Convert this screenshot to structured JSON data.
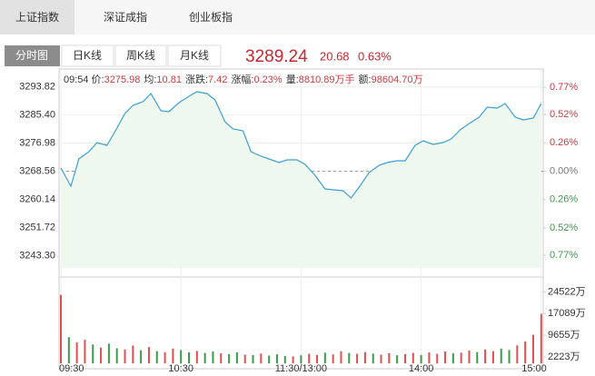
{
  "tabs": [
    "上证指数",
    "深证成指",
    "创业板指"
  ],
  "chart_tabs": [
    "分时图",
    "日K线",
    "周K线",
    "月K线"
  ],
  "quote": {
    "price": "3289.24",
    "change": "20.68",
    "change_pct": "0.63%"
  },
  "info": {
    "time": "09:54",
    "items": [
      {
        "label": "价:",
        "value": "3275.98"
      },
      {
        "label": "均:",
        "value": "10.81"
      },
      {
        "label": "涨跌:",
        "value": "7.42"
      },
      {
        "label": "涨幅:",
        "value": "0.23%"
      },
      {
        "label": "量:",
        "value": "8810.89万手"
      },
      {
        "label": "额:",
        "value": "98604.70万"
      }
    ]
  },
  "chart_data": [
    {
      "type": "area",
      "color": "#3d9fd6",
      "fill": "#eef8ef",
      "x": [
        0,
        5,
        9,
        14,
        18,
        23,
        27,
        32,
        36,
        41,
        45,
        50,
        54,
        59,
        64,
        68,
        73,
        77,
        82,
        86,
        91,
        95,
        100,
        104,
        109,
        113,
        118,
        122,
        127,
        132,
        136,
        141,
        145,
        150,
        154,
        159,
        163,
        168,
        172,
        177,
        181,
        186,
        191,
        195,
        200,
        204,
        209,
        213,
        218,
        222,
        227,
        231,
        236,
        240
      ],
      "values": [
        3269.54,
        3264.1,
        3272.26,
        3274.44,
        3277.16,
        3276.34,
        3280.43,
        3285.87,
        3288.32,
        3289.4,
        3291.85,
        3286.68,
        3286.41,
        3289.13,
        3291.04,
        3292.4,
        3291.85,
        3289.95,
        3283.42,
        3281.24,
        3280.7,
        3274.44,
        3273.08,
        3272.26,
        3271.17,
        3271.99,
        3271.99,
        3270.63,
        3267.36,
        3263.28,
        3263.01,
        3262.74,
        3260.56,
        3264.64,
        3268.18,
        3270.36,
        3271.17,
        3271.72,
        3271.72,
        3276.34,
        3277.7,
        3276.62,
        3277.16,
        3278.25,
        3281.24,
        3282.87,
        3284.78,
        3287.77,
        3287.5,
        3288.86,
        3284.78,
        3283.96,
        3284.51,
        3288.86
      ],
      "prev_close": 3268.56,
      "xlim": [
        0,
        241
      ],
      "xticks": [
        {
          "value": 0,
          "label": "09:30"
        },
        {
          "value": 60,
          "label": "10:30"
        },
        {
          "value": 120,
          "label": "11:30/13:00"
        },
        {
          "value": 180,
          "label": "14:00"
        },
        {
          "value": 240,
          "label": "15:00"
        }
      ],
      "ylim": [
        3239.6,
        3299.2
      ],
      "yticks": [
        3293.82,
        {
          "value": 3285.4,
          "label": "3285.40"
        },
        3276.98,
        3268.56,
        3260.14,
        3251.72,
        {
          "value": 3243.3,
          "label": "3243.30"
        }
      ],
      "y2lim": [
        -0.886,
        0.937
      ],
      "y2ticks": [
        {
          "value": 0.77,
          "label": "0.77%"
        },
        {
          "value": 0.52,
          "label": "0.52%"
        },
        {
          "value": 0.26,
          "label": "0.26%"
        },
        {
          "value": 0,
          "label": "0.00%"
        },
        {
          "value": -0.26,
          "label": "0.26%"
        },
        {
          "value": -0.52,
          "label": "0.52%"
        },
        {
          "value": -0.77,
          "label": "0.77%"
        }
      ],
      "grid": true
    },
    {
      "type": "bar",
      "x": [
        0,
        4,
        8,
        12,
        16,
        20,
        24,
        28,
        32,
        36,
        40,
        44,
        48,
        52,
        56,
        60,
        64,
        68,
        72,
        76,
        80,
        84,
        88,
        92,
        96,
        100,
        104,
        108,
        112,
        116,
        120,
        124,
        128,
        132,
        136,
        140,
        144,
        148,
        152,
        156,
        160,
        164,
        168,
        172,
        176,
        180,
        184,
        188,
        192,
        196,
        200,
        204,
        208,
        212,
        216,
        220,
        224,
        228,
        232,
        236,
        240
      ],
      "values": [
        23500,
        9000,
        7200,
        8100,
        6500,
        5400,
        6800,
        5200,
        4800,
        6100,
        4500,
        5600,
        4200,
        3900,
        5100,
        4600,
        3800,
        4300,
        3600,
        4100,
        3500,
        3200,
        3800,
        3000,
        2900,
        3400,
        2700,
        3100,
        2600,
        2400,
        2800,
        3300,
        2900,
        3700,
        3100,
        4200,
        3600,
        3300,
        3900,
        3400,
        3000,
        3500,
        2800,
        3200,
        3600,
        2900,
        3800,
        3300,
        4100,
        3500,
        3700,
        4400,
        3900,
        4800,
        4200,
        5100,
        4600,
        6200,
        7500,
        9800,
        17000
      ],
      "colors": [
        "#e0504f",
        "#3c9a4c",
        "#e0504f",
        "#e0504f",
        "#3c9a4c",
        "#e0504f",
        "#3c9a4c",
        "#3c9a4c",
        "#e0504f",
        "#e0504f",
        "#3c9a4c",
        "#e0504f",
        "#3c9a4c",
        "#e0504f",
        "#e0504f",
        "#3c9a4c",
        "#3c9a4c",
        "#e0504f",
        "#3c9a4c",
        "#3c9a4c",
        "#e0504f",
        "#3c9a4c",
        "#3c9a4c",
        "#e0504f",
        "#3c9a4c",
        "#e0504f",
        "#3c9a4c",
        "#3c9a4c",
        "#3c9a4c",
        "#e0504f",
        "#3c9a4c",
        "#e0504f",
        "#e0504f",
        "#3c9a4c",
        "#e0504f",
        "#e0504f",
        "#3c9a4c",
        "#e0504f",
        "#e0504f",
        "#3c9a4c",
        "#e0504f",
        "#e0504f",
        "#3c9a4c",
        "#e0504f",
        "#e0504f",
        "#3c9a4c",
        "#e0504f",
        "#e0504f",
        "#e0504f",
        "#3c9a4c",
        "#e0504f",
        "#e0504f",
        "#3c9a4c",
        "#e0504f",
        "#e0504f",
        "#3c9a4c",
        "#3c9a4c",
        "#e0504f",
        "#e0504f",
        "#e0504f",
        "#e0504f"
      ],
      "xlim": [
        0,
        241
      ],
      "ylim": [
        -1500,
        26500
      ],
      "yticks": [
        {
          "value": 24522,
          "label": "24522万"
        },
        {
          "value": 17089,
          "label": "17089万"
        },
        {
          "value": 9655,
          "label": "9655万"
        },
        {
          "value": 2223,
          "label": "2223万"
        }
      ]
    }
  ]
}
